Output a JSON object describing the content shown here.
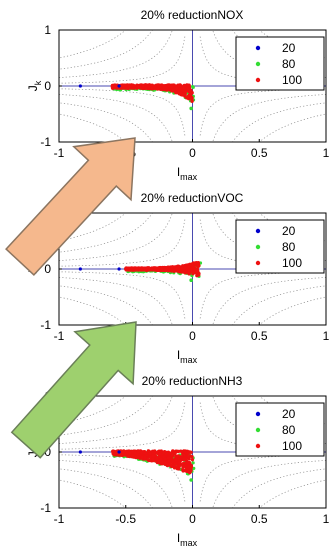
{
  "chart_data": [
    {
      "type": "scatter",
      "title": "20% reductionNOX",
      "xlabel": "I_max",
      "ylabel": "J_k",
      "xlim": [
        -1,
        1
      ],
      "ylim": [
        -1,
        1
      ],
      "xticks": [
        "-1",
        "-0.5",
        "0",
        "0.5",
        "1"
      ],
      "yticks": [
        "1",
        "0",
        "-1"
      ],
      "legend_position": "top-right",
      "series": [
        {
          "name": "20",
          "color": "#0000cc"
        },
        {
          "name": "80",
          "color": "#33dd33"
        },
        {
          "name": "100",
          "color": "#ee1111"
        }
      ],
      "cluster": {
        "x_range": [
          -0.6,
          0.0
        ],
        "y_range": [
          -0.35,
          0.02
        ],
        "shape": "tail-down-at-zero"
      }
    },
    {
      "type": "scatter",
      "title": "20% reductionVOC",
      "xlabel": "I_max",
      "ylabel": "J_k",
      "xlim": [
        -1,
        1
      ],
      "ylim": [
        -1,
        1
      ],
      "xticks": [
        "-1",
        "-0.5",
        "0",
        "0.5",
        "1"
      ],
      "yticks": [
        "1",
        "0",
        "-1"
      ],
      "legend_position": "top-right",
      "series": [
        {
          "name": "20",
          "color": "#0000cc"
        },
        {
          "name": "80",
          "color": "#33dd33"
        },
        {
          "name": "100",
          "color": "#ee1111"
        }
      ],
      "cluster": {
        "x_range": [
          -0.5,
          0.05
        ],
        "y_range": [
          -0.15,
          0.15
        ],
        "shape": "flat-band"
      }
    },
    {
      "type": "scatter",
      "title": "20% reductionNH3",
      "xlabel": "I_max",
      "ylabel": "J_k",
      "xlim": [
        -1,
        1
      ],
      "ylim": [
        -1,
        1
      ],
      "xticks": [
        "-1",
        "-0.5",
        "0",
        "0.5",
        "1"
      ],
      "yticks": [
        "1",
        "0",
        "-1"
      ],
      "legend_position": "top-right",
      "series": [
        {
          "name": "20",
          "color": "#0000cc"
        },
        {
          "name": "80",
          "color": "#33dd33"
        },
        {
          "name": "100",
          "color": "#ee1111"
        }
      ],
      "cluster": {
        "x_range": [
          -0.6,
          0.0
        ],
        "y_range": [
          -0.45,
          0.02
        ],
        "shape": "wedge-down"
      }
    }
  ],
  "arrows": [
    {
      "color": "#f5b88d",
      "border": "#8c7560"
    },
    {
      "color": "#9ed06e",
      "border": "#6a7f58"
    }
  ]
}
